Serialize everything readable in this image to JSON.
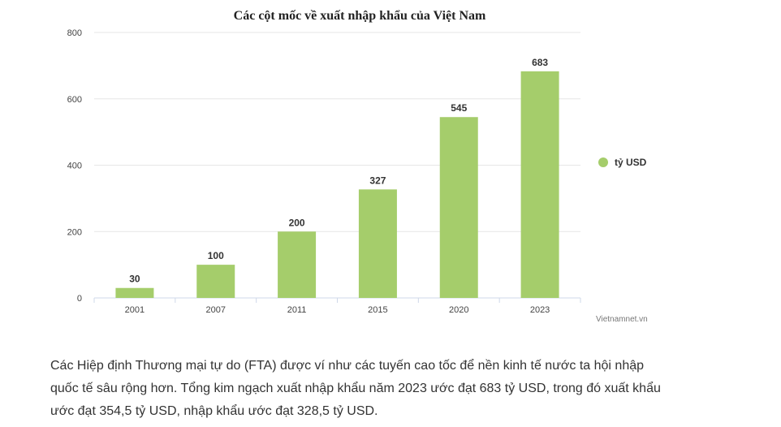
{
  "chart_data": {
    "type": "bar",
    "title": "Các cột mốc về xuất nhập khẩu của Việt Nam",
    "categories": [
      "2001",
      "2007",
      "2011",
      "2015",
      "2020",
      "2023"
    ],
    "series": [
      {
        "name": "tỷ USD",
        "values": [
          30,
          100,
          200,
          327,
          545,
          683
        ],
        "color": "#a5cd6b"
      }
    ],
    "ylim": [
      0,
      800
    ],
    "yticks": [
      0,
      200,
      400,
      600,
      800
    ],
    "grid": true,
    "legend_position": "right",
    "data_labels": true
  },
  "credit": "Vietnamnet.vn",
  "article": {
    "paragraph": "Các Hiệp định Thương mại tự do (FTA) được ví như các tuyến cao tốc để nền kinh tế nước ta hội nhập quốc tế sâu rộng hơn. Tổng kim ngạch xuất nhập khẩu năm 2023 ước đạt 683 tỷ USD, trong đó xuất khẩu ước đạt 354,5 tỷ USD, nhập khẩu ước đạt 328,5 tỷ USD."
  }
}
